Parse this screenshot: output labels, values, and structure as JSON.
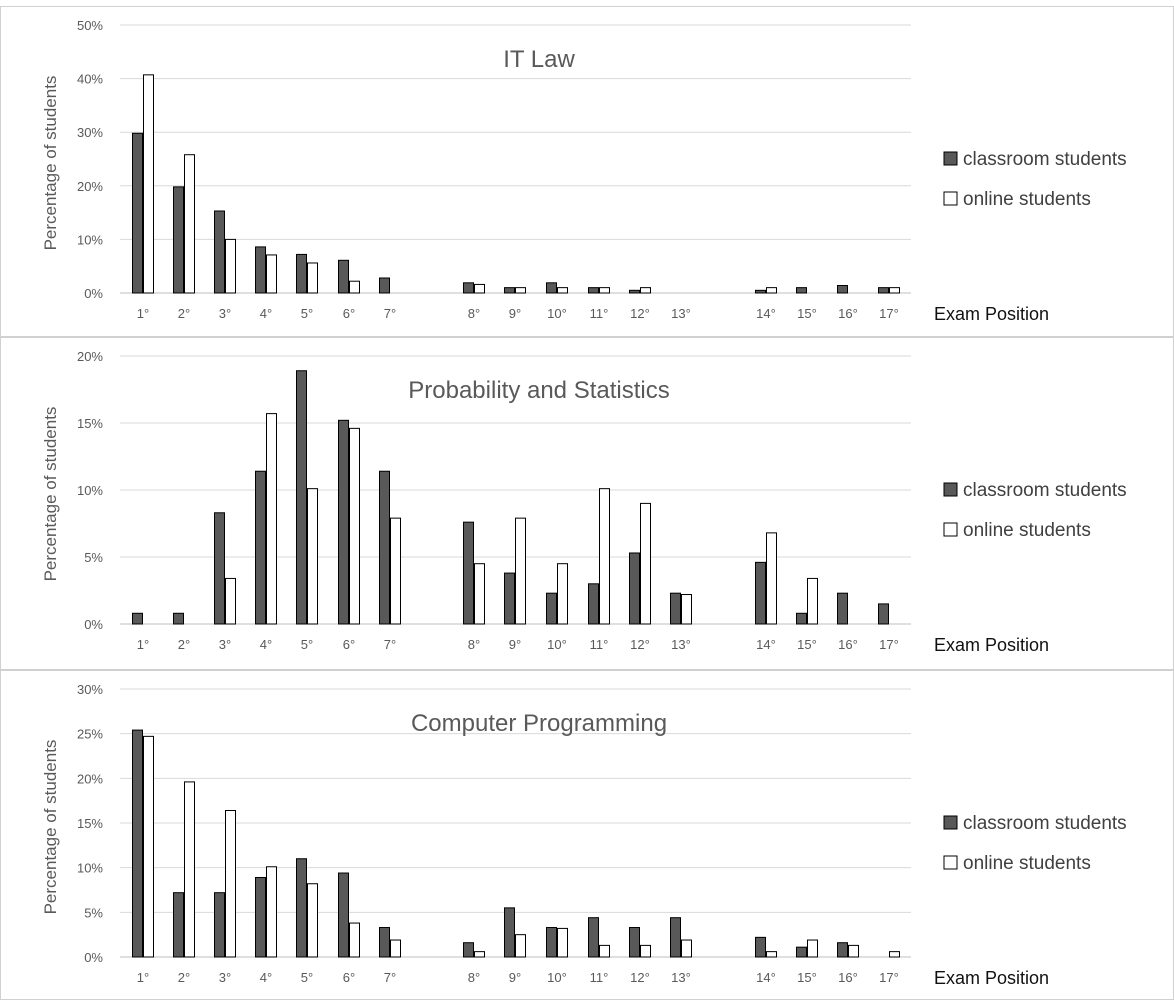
{
  "legend": {
    "classroom": "classroom students",
    "online": "online students",
    "classroom_color": "#595959",
    "online_color": "#ffffff"
  },
  "chart_data": [
    {
      "type": "bar",
      "title": "IT Law",
      "ylabel": "Percentage of students",
      "xlabel": "Exam Position",
      "ylim": [
        0,
        50
      ],
      "yticks": [
        "0%",
        "10%",
        "20%",
        "30%",
        "40%",
        "50%"
      ],
      "categories": [
        "1°",
        "2°",
        "3°",
        "4°",
        "5°",
        "6°",
        "7°",
        "8°",
        "9°",
        "10°",
        "11°",
        "12°",
        "13°",
        "14°",
        "15°",
        "16°",
        "17°"
      ],
      "series": [
        {
          "name": "classroom students",
          "values": [
            29.8,
            19.8,
            15.3,
            8.6,
            7.2,
            6.1,
            2.8,
            1.9,
            1.0,
            1.9,
            1.0,
            0.5,
            0,
            0.5,
            1.0,
            1.4,
            1.0
          ]
        },
        {
          "name": "online students",
          "values": [
            40.7,
            25.8,
            10.0,
            7.1,
            5.6,
            2.2,
            0,
            1.6,
            1.0,
            1.0,
            1.0,
            1.0,
            0,
            1.0,
            0,
            0,
            1.0
          ]
        }
      ]
    },
    {
      "type": "bar",
      "title": "Probability and Statistics",
      "ylabel": "Percentage of students",
      "xlabel": "Exam Position",
      "ylim": [
        0,
        20
      ],
      "yticks": [
        "0%",
        "5%",
        "10%",
        "15%",
        "20%"
      ],
      "categories": [
        "1°",
        "2°",
        "3°",
        "4°",
        "5°",
        "6°",
        "7°",
        "8°",
        "9°",
        "10°",
        "11°",
        "12°",
        "13°",
        "14°",
        "15°",
        "16°",
        "17°"
      ],
      "series": [
        {
          "name": "classroom students",
          "values": [
            0.8,
            0.8,
            8.3,
            11.4,
            18.9,
            15.2,
            11.4,
            7.6,
            3.8,
            2.3,
            3.0,
            5.3,
            2.3,
            4.6,
            0.8,
            2.3,
            1.5
          ]
        },
        {
          "name": "online students",
          "values": [
            0,
            0,
            3.4,
            15.7,
            10.1,
            14.6,
            7.9,
            4.5,
            7.9,
            4.5,
            10.1,
            9.0,
            2.2,
            6.8,
            3.4,
            0,
            0
          ]
        }
      ]
    },
    {
      "type": "bar",
      "title": "Computer Programming",
      "ylabel": "Percentage of students",
      "xlabel": "Exam Position",
      "ylim": [
        0,
        30
      ],
      "yticks": [
        "0%",
        "5%",
        "10%",
        "15%",
        "20%",
        "25%",
        "30%"
      ],
      "categories": [
        "1°",
        "2°",
        "3°",
        "4°",
        "5°",
        "6°",
        "7°",
        "8°",
        "9°",
        "10°",
        "11°",
        "12°",
        "13°",
        "14°",
        "15°",
        "16°",
        "17°"
      ],
      "series": [
        {
          "name": "classroom students",
          "values": [
            25.4,
            7.2,
            7.2,
            8.9,
            11.0,
            9.4,
            3.3,
            1.6,
            5.5,
            3.3,
            4.4,
            3.3,
            4.4,
            2.2,
            1.1,
            1.6,
            0
          ]
        },
        {
          "name": "online students",
          "values": [
            24.7,
            19.6,
            16.4,
            10.1,
            8.2,
            3.8,
            1.9,
            0.6,
            2.5,
            3.2,
            1.3,
            1.3,
            1.9,
            0.6,
            1.9,
            1.3,
            0.6
          ]
        }
      ]
    }
  ]
}
